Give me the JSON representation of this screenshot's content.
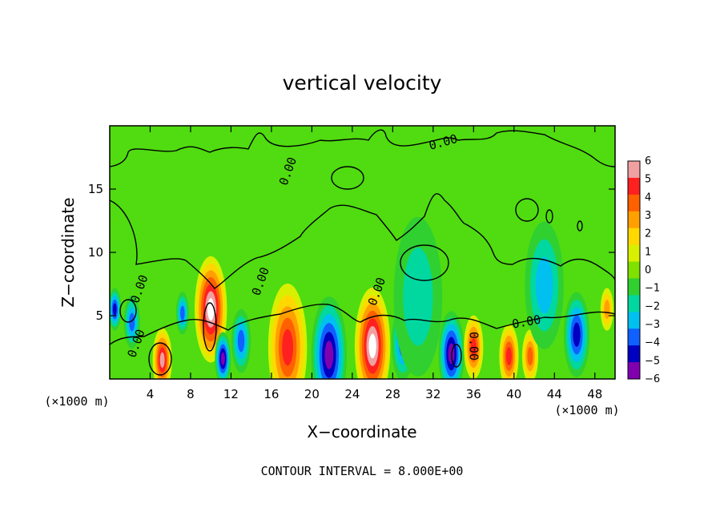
{
  "chart_data": {
    "type": "heatmap",
    "title": "vertical velocity",
    "xlabel": "X−coordinate",
    "ylabel": "Z−coordinate",
    "x_unit": "(×1000 m)",
    "z_unit": "(×1000 m)",
    "xlim": [
      0,
      50
    ],
    "ylim": [
      0,
      20
    ],
    "x_ticks": [
      4,
      8,
      12,
      16,
      20,
      24,
      28,
      32,
      36,
      40,
      44,
      48
    ],
    "y_ticks": [
      5,
      10,
      15
    ],
    "colorbar": {
      "ticks": [
        "6",
        "5",
        "4",
        "3",
        "2",
        "1",
        "0",
        "−1",
        "−2",
        "−3",
        "−4",
        "−5",
        "−6"
      ],
      "colors": [
        "#f0a0a0",
        "#ff2020",
        "#ff6000",
        "#ffa000",
        "#ffd800",
        "#d8f000",
        "#80e000",
        "#30d030",
        "#00d8a0",
        "#00c0f0",
        "#1060ff",
        "#0000c0",
        "#8000b0"
      ]
    },
    "background_value": 0.5,
    "cells": [
      {
        "x": 5.2,
        "z": 1.5,
        "w": 0.6,
        "value": 6
      },
      {
        "x": 7.2,
        "z": 5.2,
        "w": 0.4,
        "value": -4
      },
      {
        "x": 2.2,
        "z": 4.5,
        "w": 0.5,
        "value": -4
      },
      {
        "x": 0.5,
        "z": 5.5,
        "w": 0.4,
        "value": -5
      },
      {
        "x": 10.0,
        "z": 5.5,
        "w": 1.0,
        "value": 7
      },
      {
        "x": 11.2,
        "z": 1.6,
        "w": 0.5,
        "value": -6
      },
      {
        "x": 13.0,
        "z": 3.0,
        "w": 0.6,
        "value": -4
      },
      {
        "x": 17.6,
        "z": 2.5,
        "w": 1.2,
        "value": 5
      },
      {
        "x": 21.7,
        "z": 1.9,
        "w": 1.1,
        "value": -6
      },
      {
        "x": 26.0,
        "z": 2.6,
        "w": 1.1,
        "value": 7
      },
      {
        "x": 29.0,
        "z": 2.8,
        "w": 0.7,
        "value": -4
      },
      {
        "x": 33.8,
        "z": 2.0,
        "w": 0.8,
        "value": -6
      },
      {
        "x": 36.0,
        "z": 2.5,
        "w": 0.6,
        "value": 5
      },
      {
        "x": 39.5,
        "z": 1.8,
        "w": 0.6,
        "value": 5
      },
      {
        "x": 41.6,
        "z": 1.8,
        "w": 0.5,
        "value": 4
      },
      {
        "x": 46.2,
        "z": 3.5,
        "w": 0.8,
        "value": -5
      },
      {
        "x": 43.0,
        "z": 7.4,
        "w": 1.2,
        "value": -3
      },
      {
        "x": 49.2,
        "z": 5.5,
        "w": 0.4,
        "value": 3
      },
      {
        "x": 30.5,
        "z": 6.5,
        "w": 1.5,
        "value": -2
      }
    ],
    "contour_labels": [
      {
        "text": "0.00",
        "x": 3.3,
        "z": 7.0,
        "angle": -70
      },
      {
        "text": "0.00",
        "x": 3.0,
        "z": 2.7,
        "angle": -70
      },
      {
        "text": "0.00",
        "x": 15.3,
        "z": 7.6,
        "angle": -70
      },
      {
        "text": "0.00",
        "x": 18.0,
        "z": 16.3,
        "angle": -70
      },
      {
        "text": "0.00",
        "x": 26.8,
        "z": 6.8,
        "angle": -70
      },
      {
        "text": "0.00",
        "x": 35.6,
        "z": 2.6,
        "angle": 90
      },
      {
        "text": "0.00",
        "x": 33.1,
        "z": 18.4,
        "angle": -15
      },
      {
        "text": "0.00",
        "x": 41.3,
        "z": 4.2,
        "angle": -10
      }
    ],
    "note": "CONTOUR INTERVAL = 8.000E+00"
  }
}
